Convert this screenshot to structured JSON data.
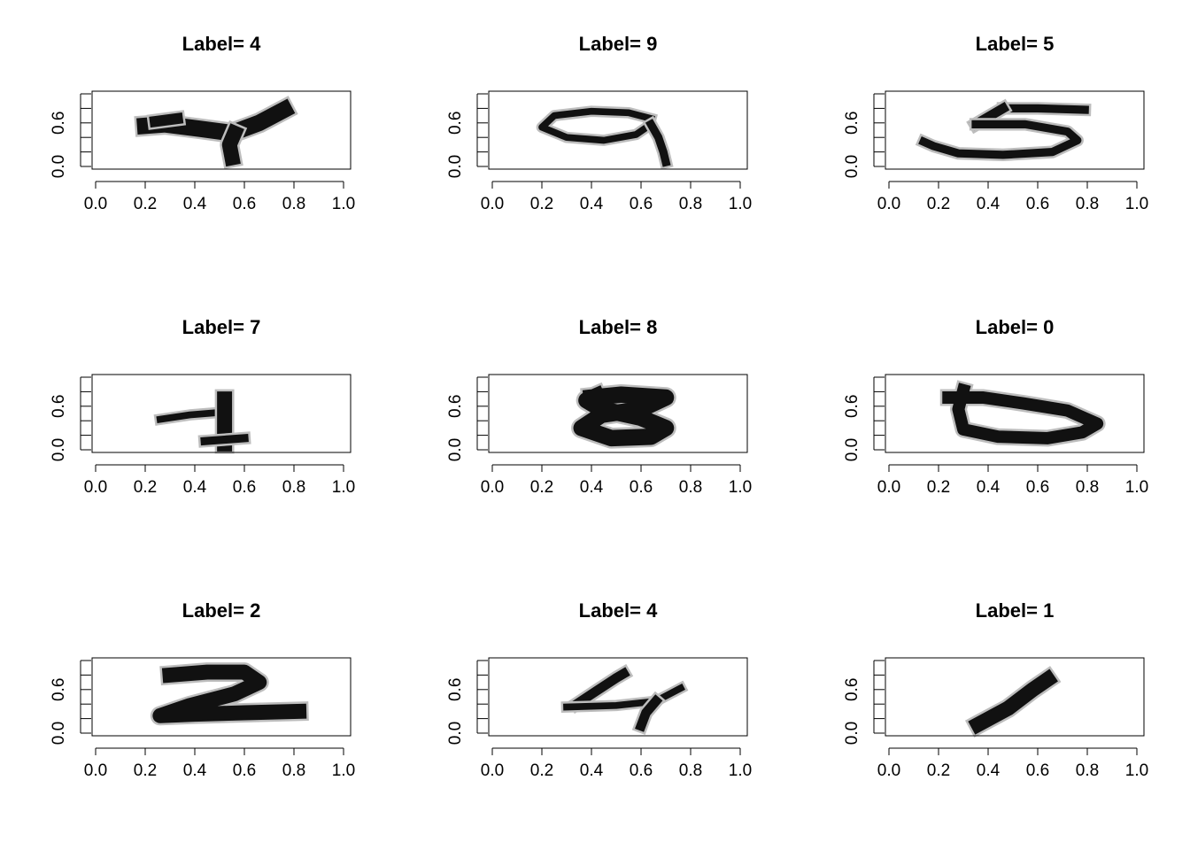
{
  "chart_data": [
    {
      "type": "heatmap",
      "title": "Label= 4",
      "xlim": [
        0,
        1
      ],
      "ylim": [
        0,
        1
      ],
      "x_ticks": [
        "0.0",
        "0.2",
        "0.4",
        "0.6",
        "0.8",
        "1.0"
      ],
      "y_ticks": [
        "0.0",
        "0.6"
      ],
      "grayscale": true,
      "digit": "4",
      "color": "#111111"
    },
    {
      "type": "heatmap",
      "title": "Label= 9",
      "xlim": [
        0,
        1
      ],
      "ylim": [
        0,
        1
      ],
      "x_ticks": [
        "0.0",
        "0.2",
        "0.4",
        "0.6",
        "0.8",
        "1.0"
      ],
      "y_ticks": [
        "0.0",
        "0.6"
      ],
      "grayscale": true,
      "digit": "9",
      "color": "#111111"
    },
    {
      "type": "heatmap",
      "title": "Label= 5",
      "xlim": [
        0,
        1
      ],
      "ylim": [
        0,
        1
      ],
      "x_ticks": [
        "0.0",
        "0.2",
        "0.4",
        "0.6",
        "0.8",
        "1.0"
      ],
      "y_ticks": [
        "0.0",
        "0.6"
      ],
      "grayscale": true,
      "digit": "5",
      "color": "#111111"
    },
    {
      "type": "heatmap",
      "title": "Label= 7",
      "xlim": [
        0,
        1
      ],
      "ylim": [
        0,
        1
      ],
      "x_ticks": [
        "0.0",
        "0.2",
        "0.4",
        "0.6",
        "0.8",
        "1.0"
      ],
      "y_ticks": [
        "0.0",
        "0.6"
      ],
      "grayscale": true,
      "digit": "7",
      "color": "#111111"
    },
    {
      "type": "heatmap",
      "title": "Label= 8",
      "xlim": [
        0,
        1
      ],
      "ylim": [
        0,
        1
      ],
      "x_ticks": [
        "0.0",
        "0.2",
        "0.4",
        "0.6",
        "0.8",
        "1.0"
      ],
      "y_ticks": [
        "0.0",
        "0.6"
      ],
      "grayscale": true,
      "digit": "8",
      "color": "#111111"
    },
    {
      "type": "heatmap",
      "title": "Label= 0",
      "xlim": [
        0,
        1
      ],
      "ylim": [
        0,
        1
      ],
      "x_ticks": [
        "0.0",
        "0.2",
        "0.4",
        "0.6",
        "0.8",
        "1.0"
      ],
      "y_ticks": [
        "0.0",
        "0.6"
      ],
      "grayscale": true,
      "digit": "0",
      "color": "#111111"
    },
    {
      "type": "heatmap",
      "title": "Label= 2",
      "xlim": [
        0,
        1
      ],
      "ylim": [
        0,
        1
      ],
      "x_ticks": [
        "0.0",
        "0.2",
        "0.4",
        "0.6",
        "0.8",
        "1.0"
      ],
      "y_ticks": [
        "0.0",
        "0.6"
      ],
      "grayscale": true,
      "digit": "2",
      "color": "#111111"
    },
    {
      "type": "heatmap",
      "title": "Label= 4",
      "xlim": [
        0,
        1
      ],
      "ylim": [
        0,
        1
      ],
      "x_ticks": [
        "0.0",
        "0.2",
        "0.4",
        "0.6",
        "0.8",
        "1.0"
      ],
      "y_ticks": [
        "0.0",
        "0.6"
      ],
      "grayscale": true,
      "digit": "4",
      "color": "#111111"
    },
    {
      "type": "heatmap",
      "title": "Label= 1",
      "xlim": [
        0,
        1
      ],
      "ylim": [
        0,
        1
      ],
      "x_ticks": [
        "0.0",
        "0.2",
        "0.4",
        "0.6",
        "0.8",
        "1.0"
      ],
      "y_ticks": [
        "0.0",
        "0.6"
      ],
      "grayscale": true,
      "digit": "1",
      "color": "#111111"
    }
  ]
}
